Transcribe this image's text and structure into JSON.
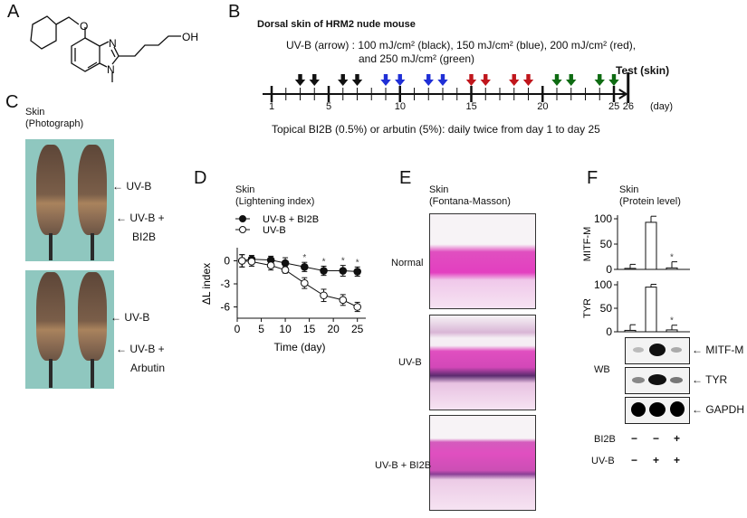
{
  "panels": {
    "A": {
      "letter": "A",
      "structure_labels": {
        "oxygen": "O",
        "n_top": "N",
        "n_bottom": "N",
        "hydroxyl": "OH"
      }
    },
    "B": {
      "letter": "B",
      "title": "Dorsal skin of HRM2 nude mouse",
      "uvb_line1": "UV-B  (arrow) : 100 mJ/cm² (black), 150 mJ/cm² (blue), 200 mJ/cm² (red),",
      "uvb_line2": "and 250 mJ/cm² (green)",
      "test_label": "Test (skin)",
      "day_unit": "(day)",
      "tick_labels": [
        "1",
        "5",
        "10",
        "15",
        "20",
        "25",
        "26"
      ],
      "topical": "Topical BI2B (0.5%) or arbutin (5%): daily twice from day 1 to day 25",
      "doses": [
        {
          "color": "#111111",
          "name": "black",
          "dose": "100 mJ/cm²",
          "days": [
            3,
            4,
            6,
            7
          ]
        },
        {
          "color": "#1f2fd6",
          "name": "blue",
          "dose": "150 mJ/cm²",
          "days": [
            9,
            10,
            12,
            13
          ]
        },
        {
          "color": "#c0161c",
          "name": "red",
          "dose": "200 mJ/cm²",
          "days": [
            15,
            16,
            18,
            19
          ]
        },
        {
          "color": "#0e6b12",
          "name": "green",
          "dose": "250 mJ/cm²",
          "days": [
            21,
            22,
            24,
            25
          ]
        }
      ]
    },
    "C": {
      "letter": "C",
      "title1": "Skin",
      "title2": "(Photograph)",
      "top": {
        "label1": "UV-B",
        "label2": "UV-B +",
        "label3": "BI2B"
      },
      "bottom": {
        "label1": "UV-B",
        "label2": "UV-B +",
        "label3": "Arbutin"
      }
    },
    "D": {
      "letter": "D",
      "title1": "Skin",
      "title2": "(Lightening index)"
    },
    "E": {
      "letter": "E",
      "title1": "Skin",
      "title2": "(Fontana-Masson)",
      "rows": [
        "Normal",
        "UV-B",
        "UV-B + BI2B"
      ]
    },
    "F": {
      "letter": "F",
      "title1": "Skin",
      "title2": "(Protein level)",
      "wb_label": "WB",
      "blot_labels": [
        "MITF-M",
        "TYR",
        "GAPDH"
      ],
      "conditions": [
        {
          "name": "BI2B",
          "values": [
            "−",
            "−",
            "+"
          ]
        },
        {
          "name": "UV-B",
          "values": [
            "−",
            "+",
            "+"
          ]
        }
      ]
    }
  },
  "chart_data": [
    {
      "type": "line",
      "panel": "D",
      "title": "Skin (Lightening index)",
      "xlabel": "Time (day)",
      "ylabel": "ΔL index",
      "xlim": [
        0,
        26
      ],
      "ylim": [
        -7,
        1
      ],
      "xticks": [
        0,
        5,
        10,
        15,
        20,
        25
      ],
      "yticks": [
        0,
        -3,
        -6
      ],
      "legend": "top-left",
      "series": [
        {
          "name": "UV-B + BI2B",
          "marker": "filled-circle",
          "x": [
            1,
            3,
            7,
            10,
            14,
            18,
            22,
            25
          ],
          "y": [
            0.0,
            0.2,
            0.1,
            -0.3,
            -0.8,
            -1.3,
            -1.3,
            -1.4
          ],
          "err": [
            0.8,
            0.5,
            0.5,
            0.7,
            0.6,
            0.6,
            0.7,
            0.6
          ],
          "significant": [
            false,
            false,
            false,
            false,
            true,
            true,
            true,
            true
          ]
        },
        {
          "name": "UV-B",
          "marker": "open-circle",
          "x": [
            1,
            3,
            7,
            10,
            14,
            18,
            22,
            25
          ],
          "y": [
            0.0,
            -0.1,
            -0.6,
            -1.2,
            -2.9,
            -4.5,
            -5.1,
            -6.0
          ],
          "err": [
            0.8,
            0.6,
            0.6,
            0.4,
            0.7,
            0.8,
            0.7,
            0.6
          ],
          "significant": [
            false,
            false,
            false,
            false,
            false,
            false,
            false,
            false
          ]
        }
      ]
    },
    {
      "type": "bar",
      "panel": "F",
      "ylabel": "MITF-M",
      "ylim": [
        0,
        100
      ],
      "yticks": [
        0,
        50,
        100
      ],
      "categories": [
        "BI2B−/UV-B−",
        "BI2B−/UV-B+",
        "BI2B+/UV-B+"
      ],
      "values": [
        2,
        93,
        3
      ],
      "err": [
        8,
        12,
        12
      ],
      "significant": [
        false,
        false,
        true
      ]
    },
    {
      "type": "bar",
      "panel": "F",
      "ylabel": "TYR",
      "ylim": [
        0,
        100
      ],
      "yticks": [
        0,
        50,
        100
      ],
      "categories": [
        "BI2B−/UV-B−",
        "BI2B−/UV-B+",
        "BI2B+/UV-B+"
      ],
      "values": [
        3,
        95,
        4
      ],
      "err": [
        12,
        6,
        10
      ],
      "significant": [
        false,
        false,
        true
      ]
    }
  ]
}
